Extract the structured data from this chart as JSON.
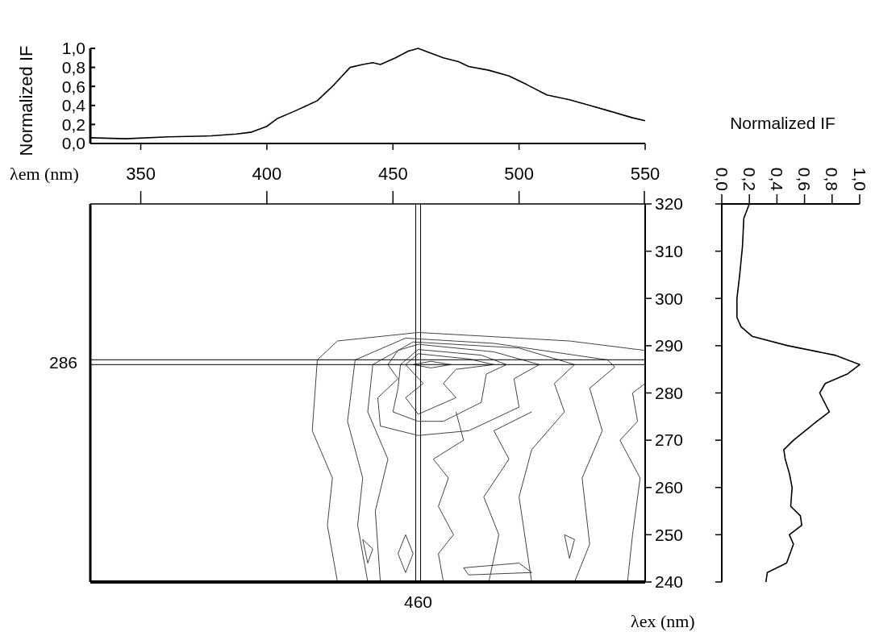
{
  "chart_data": [
    {
      "type": "line",
      "ylabel": "Normalized IF",
      "xlabel": "λem (nm)",
      "xlim": [
        330,
        550
      ],
      "ylim": [
        0,
        1
      ],
      "xticks": [
        350,
        400,
        450,
        500,
        550
      ],
      "yticks": [
        {
          "value": 0,
          "label": "0,0"
        },
        {
          "value": 0.2,
          "label": "0,2"
        },
        {
          "value": 0.4,
          "label": "0,4"
        },
        {
          "value": 0.6,
          "label": "0,6"
        },
        {
          "value": 0.8,
          "label": "0,8"
        },
        {
          "value": 1,
          "label": "1,0"
        }
      ],
      "annotations": [
        "460"
      ],
      "series": [
        {
          "color": "#000000",
          "x": [
            330,
            344,
            361,
            378,
            388,
            394,
            400,
            404,
            411,
            416,
            420,
            426,
            433,
            438,
            442,
            445,
            451,
            456,
            460,
            464,
            470,
            476,
            480,
            488,
            496,
            503,
            511,
            520,
            528,
            536,
            545,
            550
          ],
          "values": [
            0.06,
            0.05,
            0.07,
            0.08,
            0.1,
            0.12,
            0.18,
            0.26,
            0.34,
            0.4,
            0.45,
            0.6,
            0.8,
            0.83,
            0.85,
            0.83,
            0.9,
            0.97,
            1.0,
            0.96,
            0.9,
            0.86,
            0.81,
            0.77,
            0.71,
            0.62,
            0.51,
            0.46,
            0.4,
            0.34,
            0.27,
            0.24
          ]
        }
      ]
    },
    {
      "type": "line",
      "orientation": "horizontal",
      "xlabel": "Normalized IF",
      "ylabel": "λex (nm)",
      "xlim": [
        0,
        1
      ],
      "ylim": [
        240,
        320
      ],
      "xticks": [
        {
          "value": 0,
          "label": "0,0"
        },
        {
          "value": 0.2,
          "label": "0,2"
        },
        {
          "value": 0.4,
          "label": "0,4"
        },
        {
          "value": 0.6,
          "label": "0,6"
        },
        {
          "value": 0.8,
          "label": "0,8"
        },
        {
          "value": 1,
          "label": "1,0"
        }
      ],
      "yticks": [
        240,
        250,
        260,
        270,
        280,
        290,
        300,
        310,
        320
      ],
      "ref_lines": [
        {
          "axis": "y",
          "value": 286,
          "label": "286",
          "color": "#000000"
        }
      ],
      "series": [
        {
          "color": "#000000",
          "x": [
            320,
            317,
            311,
            305,
            300,
            296,
            294,
            292,
            290,
            288,
            286,
            284,
            282,
            280,
            276,
            274,
            270,
            268,
            266,
            263,
            260,
            256,
            254,
            252,
            250,
            248,
            244,
            242,
            240
          ],
          "values": [
            0.2,
            0.16,
            0.15,
            0.13,
            0.11,
            0.11,
            0.14,
            0.22,
            0.48,
            0.82,
            1.0,
            0.91,
            0.75,
            0.71,
            0.78,
            0.69,
            0.52,
            0.45,
            0.46,
            0.49,
            0.51,
            0.5,
            0.57,
            0.58,
            0.49,
            0.52,
            0.47,
            0.33,
            0.32
          ]
        }
      ]
    }
  ]
}
